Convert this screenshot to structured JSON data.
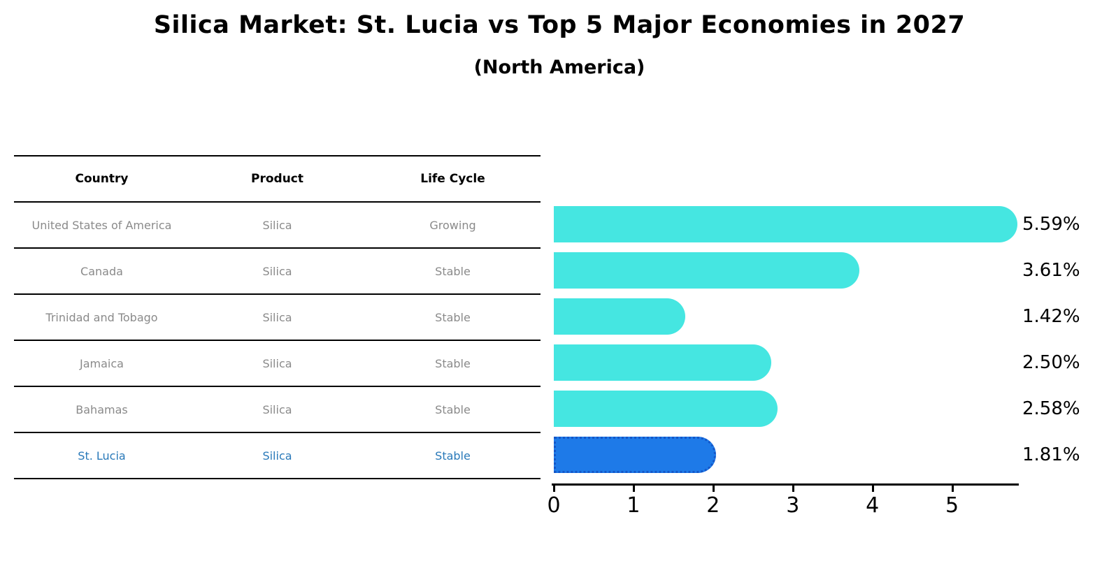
{
  "title": "Silica Market: St. Lucia vs Top 5 Major Economies in 2027",
  "subtitle": "(North America)",
  "table": {
    "columns": [
      "Country",
      "Product",
      "Life Cycle"
    ],
    "rows": [
      {
        "country": "United States of America",
        "product": "Silica",
        "life_cycle": "Growing",
        "highlighted": false
      },
      {
        "country": "Canada",
        "product": "Silica",
        "life_cycle": "Stable",
        "highlighted": false
      },
      {
        "country": "Trinidad and Tobago",
        "product": "Silica",
        "life_cycle": "Stable",
        "highlighted": false
      },
      {
        "country": "Jamaica",
        "product": "Silica",
        "life_cycle": "Stable",
        "highlighted": false
      },
      {
        "country": "Bahamas",
        "product": "Silica",
        "life_cycle": "Stable",
        "highlighted": false
      },
      {
        "country": "St. Lucia",
        "product": "Silica",
        "life_cycle": "Stable",
        "highlighted": true
      }
    ]
  },
  "chart_data": {
    "type": "bar",
    "orientation": "horizontal",
    "title": "Silica Market: St. Lucia vs Top 5 Major Economies in 2027",
    "subtitle": "(North America)",
    "categories": [
      "United States of America",
      "Canada",
      "Trinidad and Tobago",
      "Jamaica",
      "Bahamas",
      "St. Lucia"
    ],
    "values": [
      5.59,
      3.61,
      1.42,
      2.5,
      2.58,
      1.81
    ],
    "value_labels": [
      "5.59%",
      "3.61%",
      "1.42%",
      "2.50%",
      "2.58%",
      "1.81%"
    ],
    "xlabel": "",
    "ylabel": "",
    "xlim": [
      0,
      5.82
    ],
    "x_ticks": [
      0,
      1,
      2,
      3,
      4,
      5
    ],
    "grid": false,
    "legend": false,
    "highlight_index": 5,
    "colors": {
      "bar": "#45E6E1",
      "highlight_bar": "#1E7AE8",
      "highlight_border": "#1456C8",
      "highlight_text": "#2979B9",
      "row_text": "#8A8A8A",
      "header_text": "#000000",
      "axis": "#000000"
    }
  }
}
